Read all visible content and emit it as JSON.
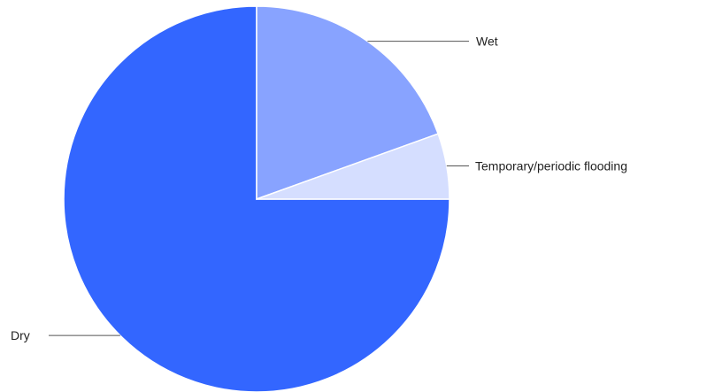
{
  "chart_data": {
    "type": "pie",
    "title": "",
    "slices": [
      {
        "label": "Dry",
        "value": 75,
        "color": "#3366ff"
      },
      {
        "label": "Wet",
        "value": 19.5,
        "color": "#88a3ff"
      },
      {
        "label": "Temporary/periodic flooding",
        "value": 5.5,
        "color": "#d5deff"
      }
    ],
    "legend": "none",
    "labels_style": "leader-lines"
  }
}
